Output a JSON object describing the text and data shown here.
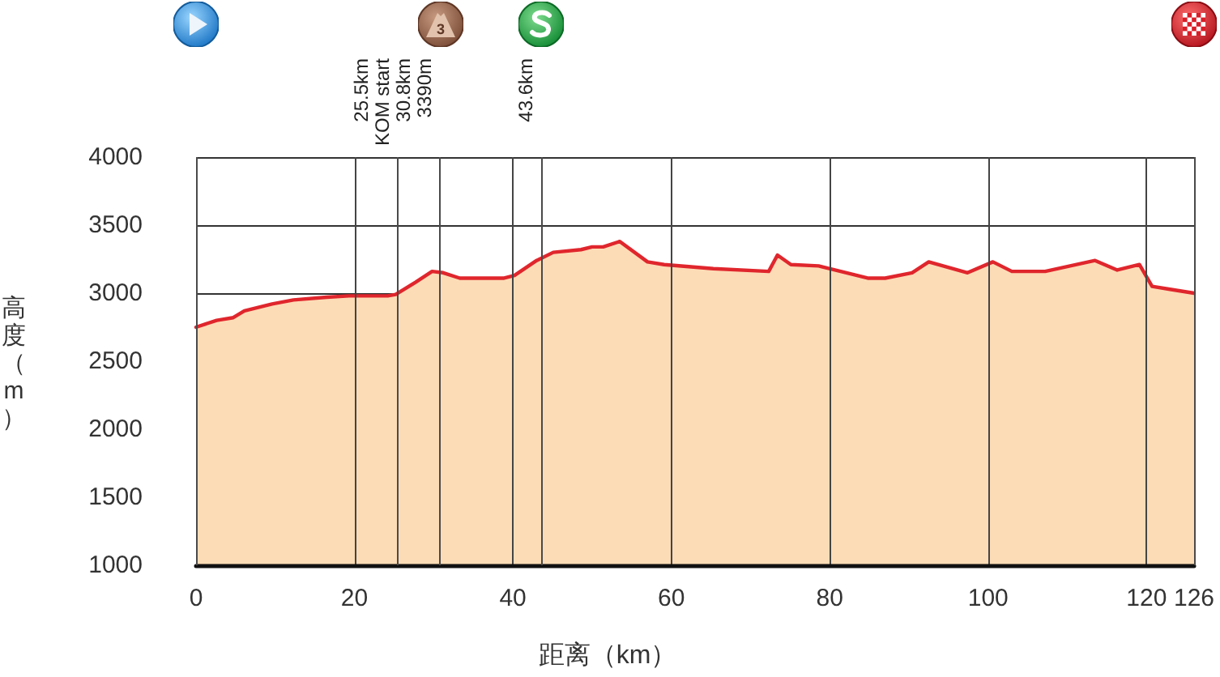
{
  "chart_data": {
    "type": "area",
    "xlabel": "距离（km）",
    "ylabel": "高度（m）",
    "x": [
      0,
      2.6,
      4.7,
      6.1,
      9.6,
      12.3,
      16.5,
      19.3,
      24.2,
      25.2,
      27.7,
      29.8,
      31.2,
      33.3,
      38.8,
      40.2,
      43.0,
      45.1,
      48.6,
      50.0,
      51.4,
      53.5,
      57.0,
      59.1,
      65.3,
      72.3,
      73.4,
      75.1,
      78.6,
      84.9,
      87.0,
      90.4,
      92.5,
      97.4,
      100.6,
      103.0,
      107.2,
      113.5,
      116.3,
      119.1,
      120.7,
      122.8,
      126
    ],
    "series": [
      {
        "color": "#fcdcb6",
        "values": [
          2750,
          2800,
          2820,
          2870,
          2920,
          2950,
          2970,
          2980,
          2980,
          2990,
          3080,
          3160,
          3150,
          3110,
          3110,
          3130,
          3240,
          3300,
          3320,
          3340,
          3340,
          3380,
          3230,
          3210,
          3180,
          3160,
          3280,
          3210,
          3200,
          3110,
          3110,
          3150,
          3230,
          3150,
          3230,
          3160,
          3160,
          3240,
          3170,
          3210,
          3050,
          3030,
          3000
        ]
      }
    ],
    "xlim": [
      0,
      126
    ],
    "xticks": [
      0,
      20,
      40,
      60,
      80,
      100,
      120,
      126
    ],
    "ylim": [
      1000,
      4000
    ],
    "yticks": [
      1000,
      1500,
      2000,
      2500,
      3000,
      3500,
      4000
    ],
    "grid": true,
    "marker": "none",
    "ref_lines": [
      {
        "axis": "x",
        "value": 0
      },
      {
        "axis": "x",
        "value": 25.5,
        "label": "25.5km\nKOM start"
      },
      {
        "axis": "x",
        "value": 30.8,
        "label": "30.8km\n3390m"
      },
      {
        "axis": "x",
        "value": 43.6,
        "label": "43.6km"
      },
      {
        "axis": "x",
        "value": 126
      }
    ],
    "annotations": [
      "3"
    ]
  }
}
